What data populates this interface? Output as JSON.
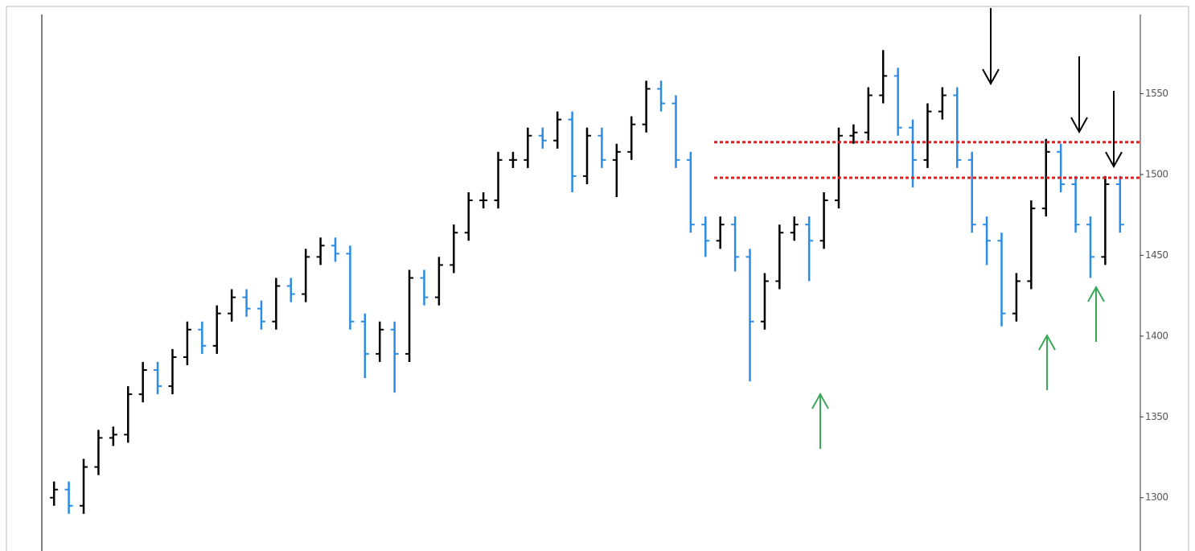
{
  "chart_data": {
    "type": "ohlc",
    "up_color": "#000000",
    "down_color": "#2b8ce6",
    "open": [
      1300,
      1305,
      1295,
      1319,
      1337,
      1339,
      1364,
      1379,
      1369,
      1387,
      1404,
      1394,
      1414,
      1424,
      1417,
      1409,
      1431,
      1426,
      1449,
      1456,
      1451,
      1409,
      1389,
      1404,
      1389,
      1436,
      1424,
      1444,
      1464,
      1484,
      1484,
      1509,
      1509,
      1524,
      1521,
      1534,
      1499,
      1524,
      1509,
      1514,
      1531,
      1553,
      1544,
      1509,
      1469,
      1459,
      1469,
      1449,
      1409,
      1434,
      1464,
      1469,
      1459,
      1484,
      1524,
      1526,
      1549,
      1561,
      1529,
      1509,
      1539,
      1549,
      1509,
      1469,
      1459,
      1414,
      1434,
      1479,
      1514,
      1494,
      1469,
      1449,
      1494
    ],
    "high": [
      1310,
      1310,
      1324,
      1342,
      1344,
      1369,
      1384,
      1384,
      1392,
      1409,
      1409,
      1419,
      1429,
      1429,
      1422,
      1436,
      1436,
      1454,
      1461,
      1461,
      1456,
      1414,
      1409,
      1409,
      1441,
      1441,
      1449,
      1469,
      1489,
      1489,
      1514,
      1514,
      1529,
      1529,
      1539,
      1539,
      1529,
      1529,
      1519,
      1536,
      1558,
      1558,
      1549,
      1514,
      1474,
      1474,
      1474,
      1454,
      1439,
      1469,
      1474,
      1474,
      1489,
      1529,
      1531,
      1554,
      1577,
      1566,
      1534,
      1544,
      1554,
      1554,
      1514,
      1474,
      1464,
      1439,
      1484,
      1522,
      1519,
      1499,
      1474,
      1499,
      1499
    ],
    "low": [
      1295,
      1290,
      1290,
      1314,
      1332,
      1334,
      1359,
      1364,
      1364,
      1382,
      1389,
      1389,
      1409,
      1412,
      1404,
      1404,
      1421,
      1421,
      1444,
      1446,
      1404,
      1374,
      1384,
      1365,
      1384,
      1419,
      1419,
      1439,
      1459,
      1479,
      1479,
      1504,
      1504,
      1516,
      1516,
      1489,
      1494,
      1504,
      1486,
      1509,
      1526,
      1539,
      1504,
      1464,
      1449,
      1454,
      1440,
      1372,
      1404,
      1429,
      1459,
      1434,
      1454,
      1479,
      1519,
      1521,
      1544,
      1524,
      1492,
      1504,
      1534,
      1504,
      1464,
      1444,
      1406,
      1409,
      1429,
      1474,
      1489,
      1464,
      1436,
      1444,
      1464
    ],
    "close": [
      1305,
      1295,
      1319,
      1337,
      1339,
      1364,
      1379,
      1369,
      1387,
      1404,
      1394,
      1414,
      1424,
      1417,
      1409,
      1431,
      1426,
      1449,
      1456,
      1451,
      1409,
      1389,
      1404,
      1389,
      1436,
      1424,
      1444,
      1464,
      1484,
      1484,
      1509,
      1509,
      1524,
      1521,
      1534,
      1499,
      1524,
      1509,
      1514,
      1531,
      1553,
      1544,
      1509,
      1469,
      1459,
      1469,
      1449,
      1409,
      1434,
      1464,
      1469,
      1459,
      1484,
      1524,
      1526,
      1549,
      1561,
      1529,
      1509,
      1539,
      1549,
      1509,
      1469,
      1459,
      1414,
      1434,
      1479,
      1514,
      1494,
      1469,
      1449,
      1494,
      1469
    ],
    "reference_lines": [
      1520,
      1498
    ],
    "reference_color": "#e02020",
    "ylim": [
      1267,
      1604
    ],
    "yticks": [
      1300,
      1350,
      1400,
      1450,
      1500,
      1550
    ]
  }
}
